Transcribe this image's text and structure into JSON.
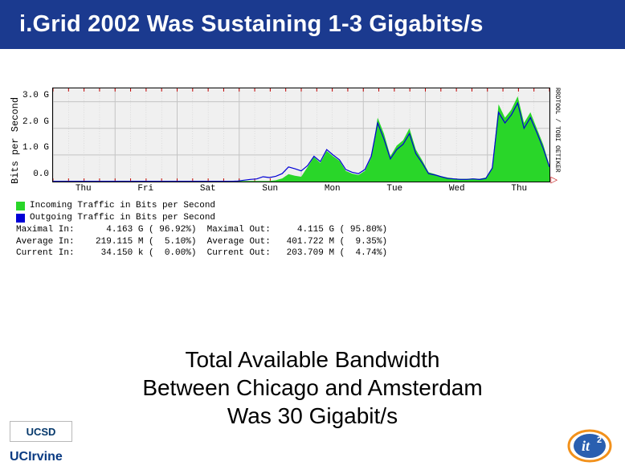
{
  "title": "i.Grid 2002 Was Sustaining 1-3 Gigabits/s",
  "title_bar": {
    "bg": "#1b3a8f",
    "fg": "#ffffff",
    "fontsize": 29
  },
  "chart": {
    "type": "area",
    "ylabel": "Bits per Second",
    "yticks": [
      "3.0 G",
      "2.0 G",
      "1.0 G",
      "0.0"
    ],
    "ylim": [
      0,
      3.5
    ],
    "xticks": [
      "Thu",
      "Fri",
      "Sat",
      "Sun",
      "Mon",
      "Tue",
      "Wed",
      "Thu"
    ],
    "background_color": "#f0f0f0",
    "grid_color": "#c4c4c4",
    "border_color": "#000000",
    "red_tick_color": "#c00000",
    "incoming": {
      "color": "#29d629",
      "label": "Incoming Traffic in Bits per Second",
      "values": [
        0.02,
        0.02,
        0.03,
        0.02,
        0.02,
        0.02,
        0.02,
        0.02,
        0.02,
        0.02,
        0.02,
        0.03,
        0.02,
        0.02,
        0.02,
        0.02,
        0.02,
        0.02,
        0.02,
        0.02,
        0.02,
        0.02,
        0.02,
        0.02,
        0.02,
        0.02,
        0.02,
        0.02,
        0.02,
        0.02,
        0.02,
        0.02,
        0.02,
        0.02,
        0.02,
        0.05,
        0.12,
        0.28,
        0.22,
        0.18,
        0.55,
        0.92,
        0.7,
        1.15,
        0.95,
        0.78,
        0.4,
        0.3,
        0.25,
        0.4,
        0.9,
        2.4,
        1.8,
        0.95,
        1.35,
        1.55,
        2.0,
        1.2,
        0.8,
        0.35,
        0.28,
        0.2,
        0.15,
        0.12,
        0.1,
        0.1,
        0.12,
        0.1,
        0.15,
        0.55,
        2.9,
        2.4,
        2.7,
        3.2,
        2.2,
        2.6,
        2.0,
        1.4,
        0.6
      ]
    },
    "outgoing": {
      "color": "#0000d6",
      "label": "Outgoing Traffic in Bits per Second",
      "values": [
        0.01,
        0.01,
        0.01,
        0.01,
        0.01,
        0.01,
        0.01,
        0.01,
        0.01,
        0.01,
        0.01,
        0.01,
        0.01,
        0.01,
        0.01,
        0.01,
        0.01,
        0.01,
        0.01,
        0.01,
        0.01,
        0.01,
        0.01,
        0.01,
        0.01,
        0.01,
        0.01,
        0.01,
        0.01,
        0.02,
        0.05,
        0.08,
        0.1,
        0.18,
        0.15,
        0.2,
        0.3,
        0.55,
        0.48,
        0.4,
        0.6,
        0.95,
        0.75,
        1.2,
        1.0,
        0.82,
        0.45,
        0.35,
        0.3,
        0.45,
        0.95,
        2.2,
        1.6,
        0.85,
        1.2,
        1.4,
        1.8,
        1.05,
        0.7,
        0.3,
        0.25,
        0.18,
        0.12,
        0.1,
        0.08,
        0.08,
        0.1,
        0.08,
        0.12,
        0.5,
        2.6,
        2.2,
        2.5,
        2.95,
        2.0,
        2.4,
        1.85,
        1.25,
        0.55
      ]
    },
    "right_credit": "RRDTOOL / TOBI OETIKER",
    "stats": {
      "maximal_in": {
        "label": "Maximal In:",
        "value": "4.163 G",
        "pct": "( 96.92%)"
      },
      "average_in": {
        "label": "Average In:",
        "value": "219.115 M",
        "pct": "(  5.10%)"
      },
      "current_in": {
        "label": "Current In:",
        "value": "34.150 k",
        "pct": "(  0.00%)"
      },
      "maximal_out": {
        "label": "Maximal Out:",
        "value": "4.115 G",
        "pct": "( 95.80%)"
      },
      "average_out": {
        "label": "Average Out:",
        "value": "401.722 M",
        "pct": "(  9.35%)"
      },
      "current_out": {
        "label": "Current Out:",
        "value": "203.709 M",
        "pct": "(  4.74%)"
      }
    }
  },
  "subtitle_lines": [
    "Total Available Bandwidth",
    "Between Chicago and Amsterdam",
    "Was 30 Gigabit/s"
  ],
  "logos": {
    "ucsd": {
      "text": "UCSD",
      "fg": "#05386b",
      "bg": "#ffffff"
    },
    "uci": {
      "text": "UCIrvine",
      "fg": "#0a3a82"
    },
    "it2": {
      "text": "it",
      "sup": "2",
      "fg": "#ffffff",
      "bg": "#2a5fb0",
      "ring": "#f2911b"
    }
  }
}
